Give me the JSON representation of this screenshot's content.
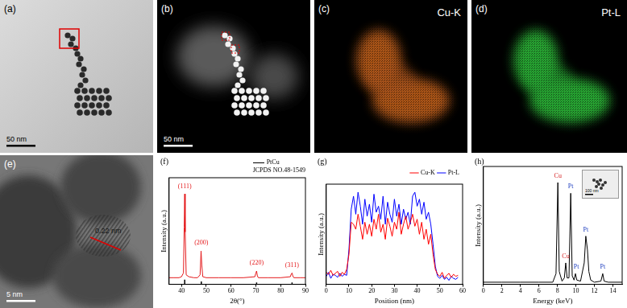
{
  "chart_data": [
    {
      "panel_label": "(f)",
      "type": "line",
      "x_label": "2θ(°)",
      "y_label": "Intensity (a.u.)",
      "xlim": [
        35,
        90
      ],
      "xticks": [
        40,
        50,
        60,
        70,
        80,
        90
      ],
      "ylim": [
        0,
        112
      ],
      "tick_labels": "x",
      "grid": false,
      "legend": "upper right",
      "series": [
        {
          "color": "#e41a1c",
          "x": [
            35,
            37,
            39,
            40,
            40.8,
            41.1,
            41.3,
            41.5,
            41.9,
            43,
            45,
            46.5,
            47.5,
            47.9,
            48.2,
            48.6,
            50,
            55,
            60,
            65,
            69.6,
            70,
            70.3,
            70.6,
            71,
            75,
            80,
            83.9,
            84.3,
            84.6,
            84.9,
            85.3,
            88,
            90
          ],
          "values": [
            7,
            7,
            7,
            8,
            12,
            60,
            95,
            55,
            10,
            8,
            7,
            7,
            10,
            35,
            20,
            8,
            7,
            7,
            7,
            7,
            8,
            12,
            14,
            9,
            7,
            7,
            7,
            8,
            11,
            12,
            9,
            7,
            7,
            7
          ]
        },
        {
          "name": "PtCu",
          "legend_subtitle": "JCPDS NO.48-1549",
          "type": "stem",
          "color": "#000000",
          "x": [
            41.3,
            48,
            70.3,
            84.6
          ],
          "values": [
            5,
            3,
            2,
            2
          ]
        }
      ],
      "annotations": [
        {
          "text": "(111)",
          "x": 41.3,
          "y": 99,
          "color": "#e41a1c"
        },
        {
          "text": "(200)",
          "x": 48,
          "y": 40,
          "color": "#e41a1c"
        },
        {
          "text": "(220)",
          "x": 70.3,
          "y": 19,
          "color": "#e41a1c"
        },
        {
          "text": "(311)",
          "x": 84.6,
          "y": 17,
          "color": "#e41a1c"
        }
      ]
    },
    {
      "panel_label": "(g)",
      "type": "line",
      "x_label": "Position (nm)",
      "y_label": "Intensity (a.u.)",
      "xlim": [
        0,
        60
      ],
      "xticks": [
        0,
        10,
        20,
        30,
        40,
        50,
        60
      ],
      "ylim": [
        0,
        100
      ],
      "tick_labels": "x",
      "grid": false,
      "legend": "upper right",
      "x": [
        0,
        1,
        2,
        3,
        4,
        5,
        6,
        7,
        8,
        9,
        10,
        11,
        12,
        13,
        14,
        15,
        16,
        17,
        18,
        19,
        20,
        21,
        22,
        23,
        24,
        25,
        26,
        27,
        28,
        29,
        30,
        31,
        32,
        33,
        34,
        35,
        36,
        37,
        38,
        39,
        40,
        41,
        42,
        43,
        44,
        45,
        46,
        47,
        48,
        49,
        50,
        51,
        52,
        53,
        54,
        55,
        56,
        57,
        58
      ],
      "series": [
        {
          "name": "Cu-K",
          "color": "#ff0000",
          "values": [
            12,
            10,
            14,
            9,
            11,
            13,
            8,
            12,
            10,
            15,
            30,
            62,
            60,
            55,
            70,
            58,
            45,
            62,
            50,
            60,
            48,
            65,
            55,
            70,
            52,
            60,
            45,
            66,
            58,
            48,
            62,
            55,
            72,
            50,
            60,
            68,
            55,
            62,
            70,
            58,
            65,
            50,
            62,
            45,
            55,
            40,
            50,
            30,
            15,
            10,
            8,
            12,
            6,
            9,
            11,
            7,
            10,
            8,
            9
          ]
        },
        {
          "name": "Pt-L",
          "color": "#0000ff",
          "values": [
            8,
            12,
            6,
            10,
            9,
            7,
            11,
            8,
            10,
            9,
            35,
            75,
            88,
            70,
            92,
            78,
            60,
            85,
            68,
            80,
            62,
            90,
            72,
            78,
            65,
            88,
            60,
            82,
            70,
            62,
            85,
            68,
            80,
            60,
            75,
            65,
            72,
            60,
            88,
            92,
            78,
            85,
            70,
            82,
            65,
            72,
            60,
            40,
            18,
            8,
            6,
            9,
            5,
            7,
            4,
            8,
            6,
            5,
            7
          ]
        }
      ]
    },
    {
      "panel_label": "(h)",
      "type": "line",
      "x_label": "Energy (keV)",
      "y_label": "Intensity (a.u.)",
      "xlim": [
        0,
        15
      ],
      "xticks": [
        0,
        2,
        4,
        6,
        8,
        10,
        12,
        14
      ],
      "ylim": [
        0,
        110
      ],
      "tick_labels": "x",
      "grid": false,
      "series": [
        {
          "color": "#000000",
          "x": [
            0,
            2,
            4,
            6,
            7.5,
            7.85,
            8.05,
            8.2,
            8.5,
            8.75,
            8.9,
            9.05,
            9.25,
            9.44,
            9.6,
            9.8,
            9.95,
            10.1,
            10.5,
            10.9,
            11.07,
            11.25,
            11.4,
            11.6,
            12,
            12.7,
            12.9,
            13.05,
            13.5,
            15
          ],
          "values": [
            2,
            2,
            2,
            2,
            2,
            10,
            95,
            12,
            3,
            6,
            20,
            6,
            6,
            85,
            8,
            4,
            10,
            4,
            3,
            20,
            45,
            32,
            12,
            4,
            2,
            3,
            10,
            3,
            2,
            2
          ]
        }
      ],
      "annotations": [
        {
          "text": "Cu",
          "x": 8.05,
          "y": 98,
          "color": "#d62728"
        },
        {
          "text": "Cu",
          "x": 8.9,
          "y": 23,
          "color": "#d62728"
        },
        {
          "text": "Pt",
          "x": 9.44,
          "y": 88,
          "color": "#1f3fbf"
        },
        {
          "text": "Pt",
          "x": 10.05,
          "y": 13,
          "color": "#1f3fbf"
        },
        {
          "text": "Pt",
          "x": 11.07,
          "y": 48,
          "color": "#1f3fbf"
        },
        {
          "text": "Pt",
          "x": 12.9,
          "y": 13,
          "color": "#1f3fbf"
        }
      ],
      "inset": {
        "scale_bar": "100 nm"
      }
    }
  ],
  "image_panels": [
    {
      "label": "(a)",
      "scale_bar": "50 nm"
    },
    {
      "label": "(b)",
      "scale_bar": "50 nm"
    },
    {
      "label": "(c)",
      "element": "Cu-K"
    },
    {
      "label": "(d)",
      "element": "Pt-L"
    },
    {
      "label": "(e)",
      "lattice_spacing": "0.22 nm",
      "scale_bar": "5 nm"
    }
  ]
}
